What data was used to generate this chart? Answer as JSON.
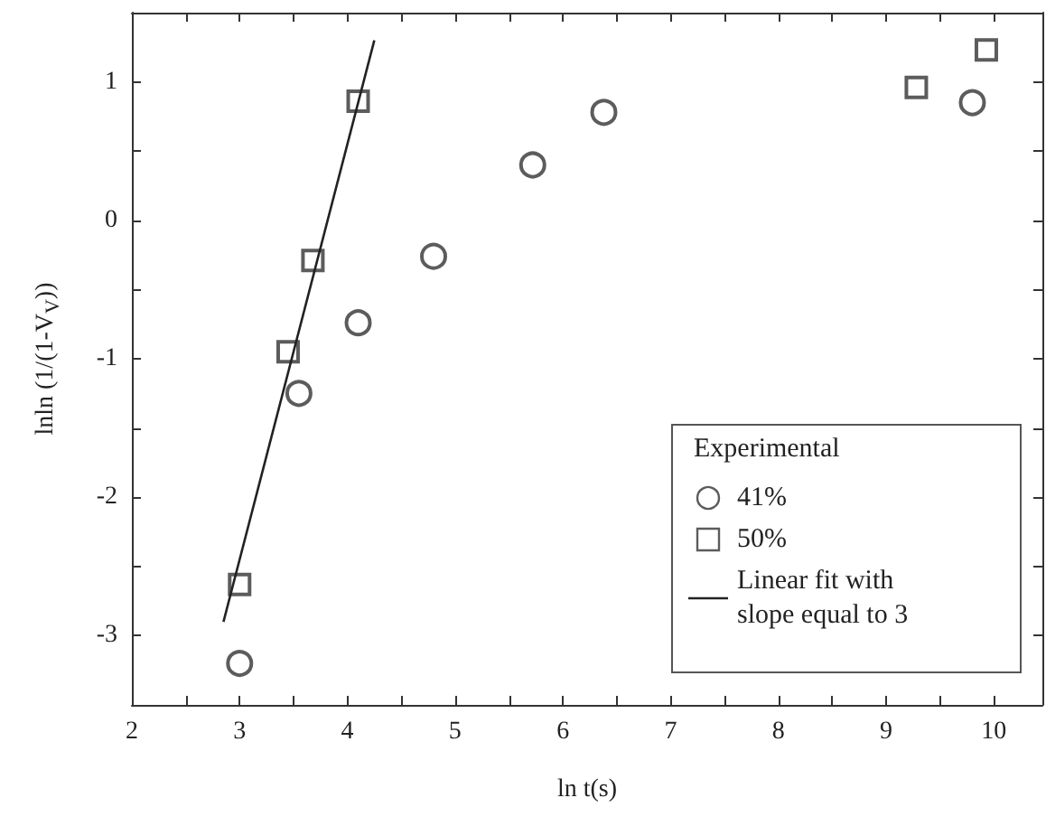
{
  "chart_data": {
    "type": "scatter",
    "xlabel": "ln t(s)",
    "ylabel": "lnln (1/(1-V$_{V}$))",
    "legend_title": "Experimental",
    "legend": "bottom right",
    "grid": false,
    "xlim": [
      2,
      10.45
    ],
    "xticks": [
      2,
      {
        "value": 2.5,
        "label": null
      },
      3,
      {
        "value": 3.5,
        "label": null
      },
      4,
      {
        "value": 4.5,
        "label": null
      },
      5,
      {
        "value": 5.5,
        "label": null
      },
      6,
      {
        "value": 6.5,
        "label": null
      },
      7,
      {
        "value": 7.5,
        "label": null
      },
      8,
      {
        "value": 8.5,
        "label": null
      },
      9,
      {
        "value": 9.5,
        "label": null
      },
      10
    ],
    "ylim": [
      -3.5,
      1.5
    ],
    "yticks": [
      {
        "value": -3.5,
        "label": null
      },
      -3,
      {
        "value": -2.5,
        "label": null
      },
      -2,
      {
        "value": -1.5,
        "label": null
      },
      -1,
      {
        "value": -0.5,
        "label": null
      },
      0,
      {
        "value": 0.5,
        "label": null
      },
      1
    ],
    "series": [
      {
        "name": "41%",
        "color": "#333333",
        "marker": "circle",
        "x": [
          3.0,
          3.55,
          4.1,
          4.8,
          5.72,
          6.38,
          9.8
        ],
        "values": [
          -3.2,
          -1.25,
          -0.74,
          -0.26,
          0.4,
          0.78,
          0.85
        ]
      },
      {
        "name": "50%",
        "color": "#333333",
        "marker": "square",
        "x": [
          3.0,
          3.45,
          3.68,
          4.1,
          9.28,
          9.93
        ],
        "values": [
          -2.63,
          -0.95,
          -0.29,
          0.86,
          0.96,
          1.23
        ]
      },
      {
        "name": "Linear fit with slope equal to 3",
        "type": "line",
        "color": "#222222",
        "marker": "none",
        "line_style": "solid",
        "x": [
          2.85,
          4.25
        ],
        "values": [
          -2.9,
          1.3
        ]
      }
    ]
  }
}
